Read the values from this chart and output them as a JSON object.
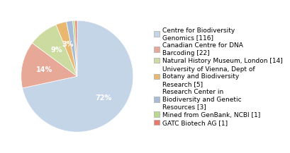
{
  "labels": [
    "Centre for Biodiversity\nGenomics [116]",
    "Canadian Centre for DNA\nBarcoding [22]",
    "Natural History Museum, London [14]",
    "University of Vienna, Dept of\nBotany and Biodiversity\nResearch [5]",
    "Research Center in\nBiodiversity and Genetic\nResources [3]",
    "Mined from GenBank, NCBI [1]",
    "GATC Biotech AG [1]"
  ],
  "values": [
    116,
    22,
    14,
    5,
    3,
    1,
    1
  ],
  "colors": [
    "#c5d5e8",
    "#e8a898",
    "#ccdba0",
    "#e8b870",
    "#a8bcd8",
    "#b8d890",
    "#e87868"
  ],
  "background_color": "#ffffff",
  "fontsize_pct": 7.0,
  "fontsize_legend": 6.5
}
